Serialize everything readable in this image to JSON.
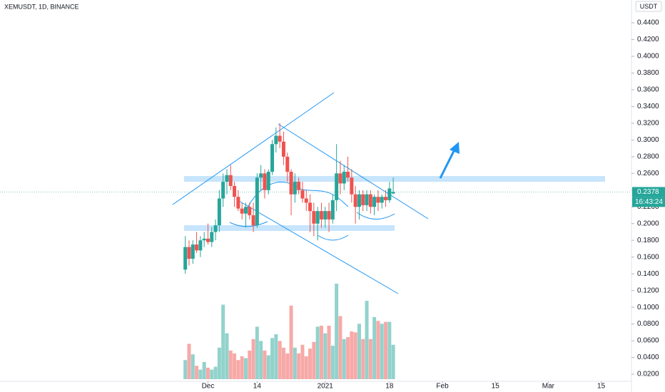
{
  "chart_data": {
    "type": "candlestick",
    "title": "XEMUSDT, 1D, BINANCE",
    "currency": "USDT",
    "x": [
      "2020-11-25",
      "2020-11-26",
      "2020-11-27",
      "2020-11-28",
      "2020-11-29",
      "2020-11-30",
      "2020-12-01",
      "2020-12-02",
      "2020-12-03",
      "2020-12-04",
      "2020-12-05",
      "2020-12-06",
      "2020-12-07",
      "2020-12-08",
      "2020-12-09",
      "2020-12-10",
      "2020-12-11",
      "2020-12-12",
      "2020-12-13",
      "2020-12-14",
      "2020-12-15",
      "2020-12-16",
      "2020-12-17",
      "2020-12-18",
      "2020-12-19",
      "2020-12-20",
      "2020-12-21",
      "2020-12-22",
      "2020-12-23",
      "2020-12-24",
      "2020-12-25",
      "2020-12-26",
      "2020-12-27",
      "2020-12-28",
      "2020-12-29",
      "2020-12-30",
      "2020-12-31",
      "2021-01-01",
      "2021-01-02",
      "2021-01-03",
      "2021-01-04",
      "2021-01-05",
      "2021-01-06",
      "2021-01-07",
      "2021-01-08",
      "2021-01-09",
      "2021-01-10",
      "2021-01-11",
      "2021-01-12",
      "2021-01-13",
      "2021-01-14",
      "2021-01-15",
      "2021-01-16",
      "2021-01-17",
      "2021-01-18",
      "2021-01-19"
    ],
    "open": [
      0.145,
      0.172,
      0.158,
      0.175,
      0.168,
      0.18,
      0.182,
      0.178,
      0.19,
      0.198,
      0.23,
      0.25,
      0.258,
      0.245,
      0.232,
      0.218,
      0.212,
      0.22,
      0.21,
      0.198,
      0.255,
      0.26,
      0.24,
      0.262,
      0.295,
      0.305,
      0.298,
      0.28,
      0.262,
      0.235,
      0.25,
      0.24,
      0.23,
      0.225,
      0.215,
      0.2,
      0.215,
      0.205,
      0.215,
      0.205,
      0.228,
      0.26,
      0.248,
      0.262,
      0.255,
      0.235,
      0.22,
      0.235,
      0.222,
      0.235,
      0.22,
      0.232,
      0.225,
      0.232,
      0.228,
      0.236
    ],
    "high": [
      0.185,
      0.18,
      0.18,
      0.19,
      0.185,
      0.19,
      0.2,
      0.196,
      0.205,
      0.24,
      0.26,
      0.265,
      0.27,
      0.25,
      0.24,
      0.225,
      0.225,
      0.225,
      0.225,
      0.26,
      0.27,
      0.265,
      0.265,
      0.3,
      0.315,
      0.32,
      0.31,
      0.285,
      0.265,
      0.26,
      0.255,
      0.25,
      0.24,
      0.235,
      0.225,
      0.22,
      0.225,
      0.22,
      0.225,
      0.235,
      0.295,
      0.275,
      0.27,
      0.28,
      0.265,
      0.245,
      0.24,
      0.24,
      0.24,
      0.24,
      0.235,
      0.24,
      0.235,
      0.24,
      0.25,
      0.255
    ],
    "low": [
      0.14,
      0.15,
      0.152,
      0.165,
      0.16,
      0.172,
      0.175,
      0.172,
      0.18,
      0.19,
      0.22,
      0.235,
      0.24,
      0.22,
      0.215,
      0.205,
      0.195,
      0.205,
      0.19,
      0.195,
      0.24,
      0.23,
      0.235,
      0.258,
      0.285,
      0.29,
      0.27,
      0.25,
      0.21,
      0.225,
      0.235,
      0.225,
      0.215,
      0.19,
      0.185,
      0.18,
      0.195,
      0.195,
      0.19,
      0.2,
      0.215,
      0.235,
      0.24,
      0.25,
      0.225,
      0.2,
      0.205,
      0.215,
      0.215,
      0.212,
      0.21,
      0.215,
      0.218,
      0.22,
      0.225,
      0.235
    ],
    "close": [
      0.172,
      0.158,
      0.175,
      0.168,
      0.18,
      0.182,
      0.178,
      0.19,
      0.198,
      0.23,
      0.25,
      0.258,
      0.245,
      0.232,
      0.218,
      0.212,
      0.22,
      0.21,
      0.198,
      0.255,
      0.26,
      0.24,
      0.262,
      0.295,
      0.305,
      0.298,
      0.28,
      0.262,
      0.235,
      0.25,
      0.24,
      0.23,
      0.225,
      0.215,
      0.2,
      0.215,
      0.205,
      0.215,
      0.205,
      0.228,
      0.26,
      0.248,
      0.262,
      0.255,
      0.235,
      0.22,
      0.235,
      0.222,
      0.235,
      0.22,
      0.232,
      0.225,
      0.232,
      0.228,
      0.242,
      0.2378
    ],
    "volume": [
      20,
      37,
      26,
      14,
      10,
      18,
      12,
      10,
      13,
      33,
      78,
      48,
      30,
      27,
      20,
      24,
      22,
      30,
      42,
      55,
      40,
      30,
      25,
      43,
      47,
      40,
      33,
      27,
      77,
      33,
      27,
      36,
      24,
      32,
      39,
      55,
      56,
      48,
      56,
      35,
      100,
      66,
      42,
      44,
      50,
      49,
      58,
      42,
      82,
      42,
      65,
      61,
      58,
      60,
      60,
      36
    ],
    "up_color": "#26a69a",
    "down_color": "#ef5350",
    "ylim": [
      0.0115,
      0.4673
    ],
    "yticks": [
      {
        "value": 0.02,
        "label": "0.0200"
      },
      {
        "value": 0.04,
        "label": "0.0400"
      },
      {
        "value": 0.06,
        "label": "0.0600"
      },
      {
        "value": 0.08,
        "label": "0.0800"
      },
      {
        "value": 0.1,
        "label": "0.1000"
      },
      {
        "value": 0.12,
        "label": "0.1200"
      },
      {
        "value": 0.14,
        "label": "0.1400"
      },
      {
        "value": 0.16,
        "label": "0.1600"
      },
      {
        "value": 0.18,
        "label": "0.1800"
      },
      {
        "value": 0.2,
        "label": "0.2000"
      },
      {
        "value": 0.22,
        "label": "0.2200"
      },
      {
        "value": 0.24,
        "label": "0.2400"
      },
      {
        "value": 0.26,
        "label": "0.2600"
      },
      {
        "value": 0.28,
        "label": "0.2800"
      },
      {
        "value": 0.3,
        "label": "0.3000"
      },
      {
        "value": 0.32,
        "label": "0.3200"
      },
      {
        "value": 0.34,
        "label": "0.3400"
      },
      {
        "value": 0.36,
        "label": "0.3600"
      },
      {
        "value": 0.38,
        "label": "0.3800"
      },
      {
        "value": 0.4,
        "label": "0.4000"
      },
      {
        "value": 0.42,
        "label": "0.4200"
      },
      {
        "value": 0.44,
        "label": "0.4400"
      }
    ],
    "xlim": [
      "2020-10-07",
      "2021-03-23"
    ],
    "xticks": [
      {
        "value": "2020-12-01",
        "label": "Dec"
      },
      {
        "value": "2020-12-14",
        "label": "14"
      },
      {
        "value": "2021-01-01",
        "label": "2021"
      },
      {
        "value": "2021-01-18",
        "label": "18"
      },
      {
        "value": "2021-02-01",
        "label": "Feb"
      },
      {
        "value": "2021-02-15",
        "label": "15"
      },
      {
        "value": "2021-03-01",
        "label": "Mar"
      },
      {
        "value": "2021-03-15",
        "label": "15"
      }
    ],
    "volume_lim": [
      0,
      100
    ],
    "last_price": 0.2378,
    "countdown": "16:43:24"
  }
}
